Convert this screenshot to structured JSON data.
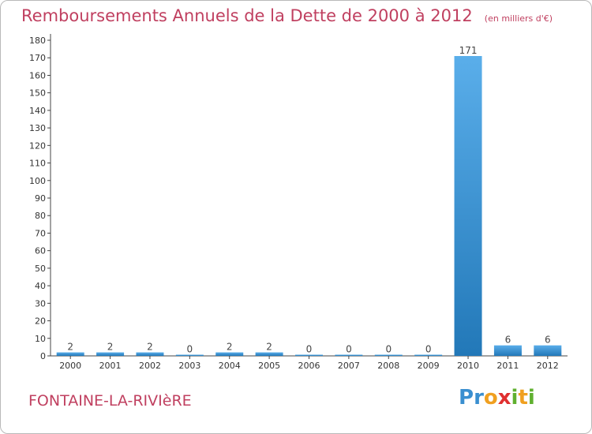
{
  "chart_data": {
    "type": "bar",
    "title": "Remboursements Annuels de la Dette de 2000 à 2012",
    "unit": "(en milliers d'€)",
    "xlabel": "",
    "ylabel": "",
    "categories": [
      "2000",
      "2001",
      "2002",
      "2003",
      "2004",
      "2005",
      "2006",
      "2007",
      "2008",
      "2009",
      "2010",
      "2011",
      "2012"
    ],
    "values": [
      2,
      2,
      2,
      0,
      2,
      2,
      0,
      0,
      0,
      0,
      171,
      6,
      6
    ],
    "data_labels": [
      "2",
      "2",
      "2",
      "0",
      "2",
      "2",
      "0",
      "0",
      "0",
      "0",
      "171",
      "6",
      "6"
    ],
    "ylim": [
      0,
      180
    ],
    "yticks": [
      0,
      10,
      20,
      30,
      40,
      50,
      60,
      70,
      80,
      90,
      100,
      110,
      120,
      130,
      140,
      150,
      160,
      170,
      180
    ],
    "grid": false,
    "legend": "none",
    "colors": {
      "bar_light": "#5aaeea",
      "bar_dark": "#2278b8",
      "axis": "#333333",
      "title": "#c04060"
    }
  },
  "commune": "FONTAINE-LA-RIVIèRE",
  "logo": {
    "letters": [
      "P",
      "r",
      "o",
      "x",
      "i",
      "t",
      "i"
    ],
    "colors": [
      "#3a8fd0",
      "#3a8fd0",
      "#f0a020",
      "#e03030",
      "#60b030",
      "#f0a020",
      "#60b030"
    ]
  }
}
